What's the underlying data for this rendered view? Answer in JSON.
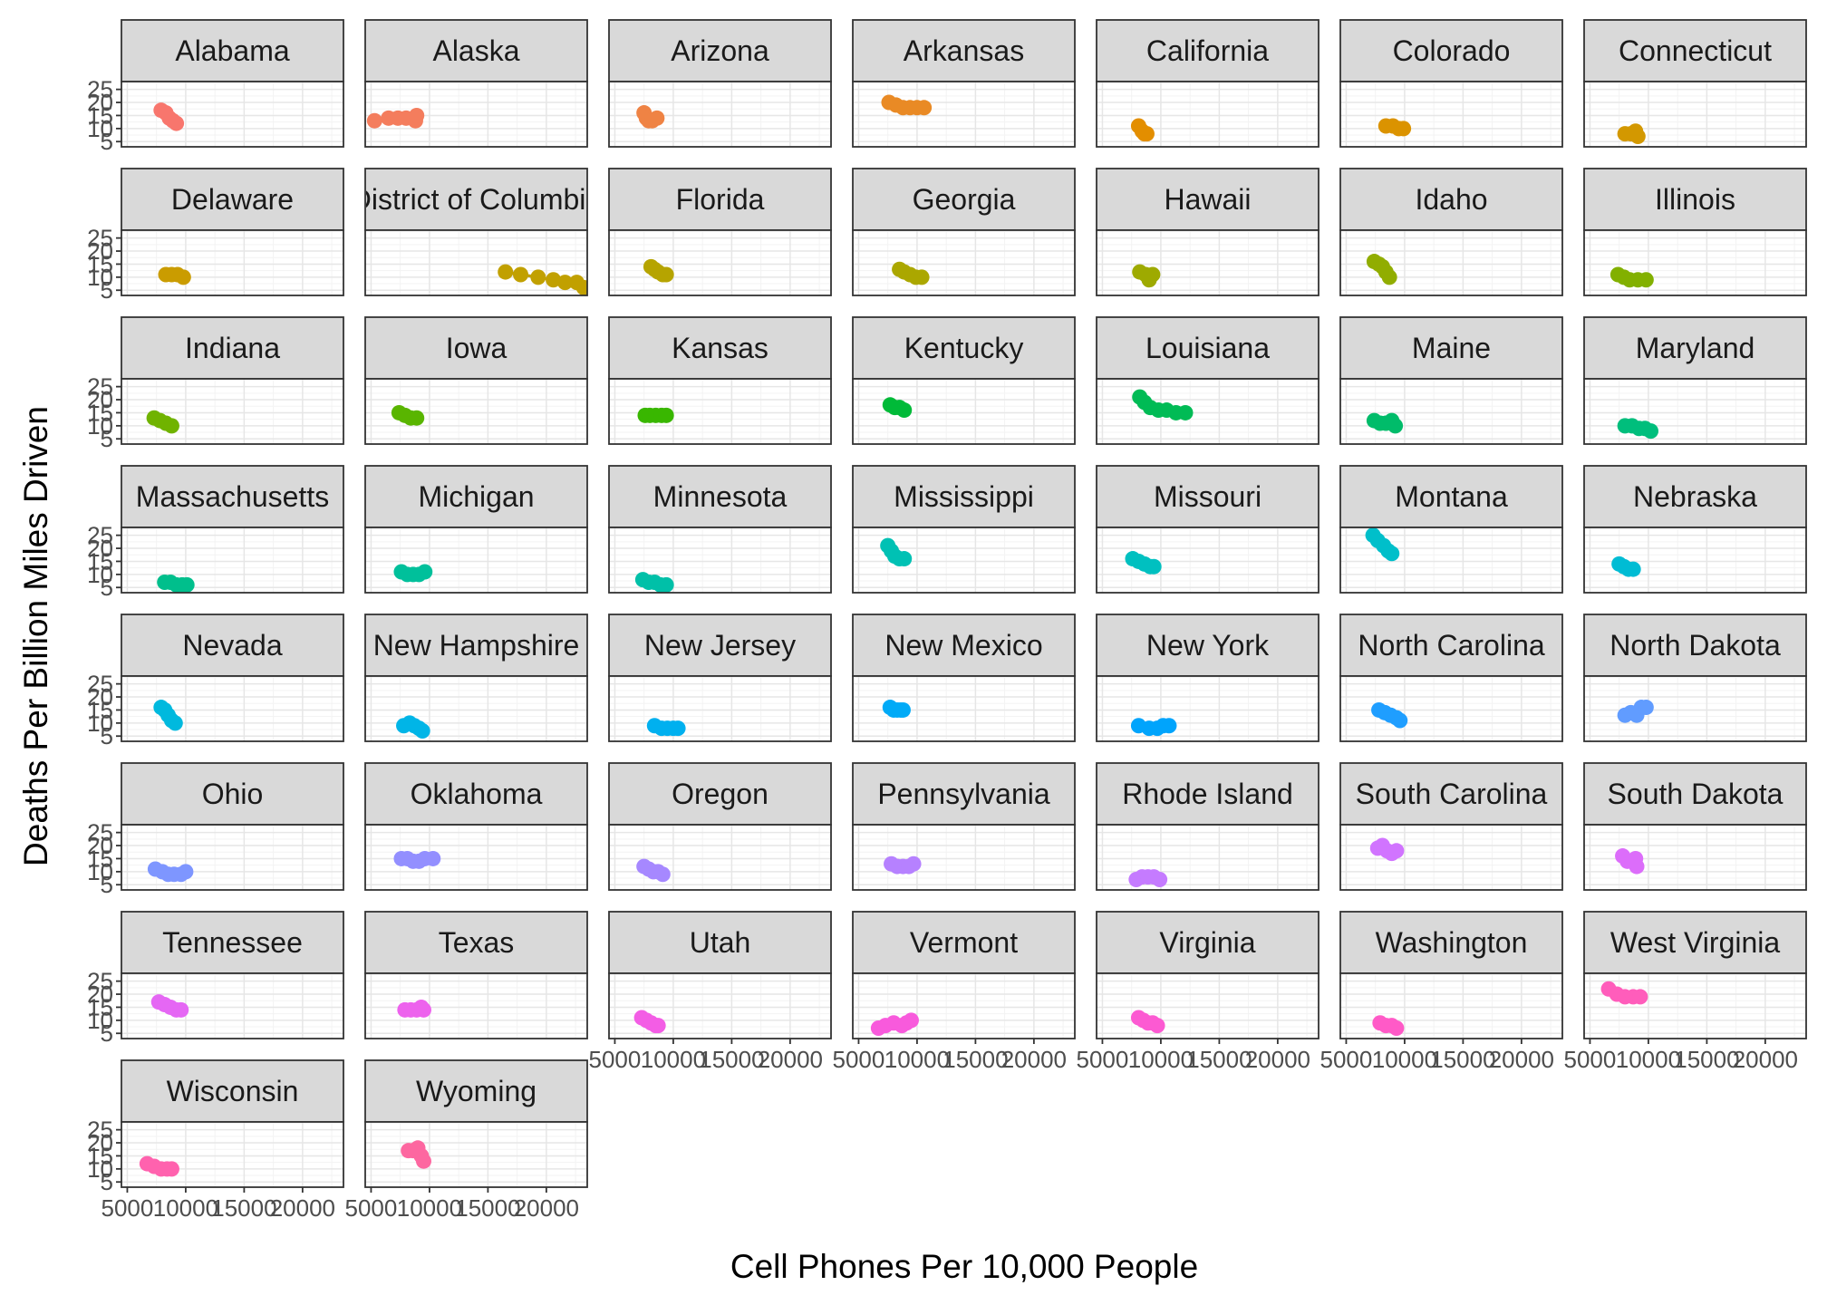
{
  "chart_data": {
    "type": "scatter",
    "xlabel": "Cell Phones Per 10,000 People",
    "ylabel": "Deaths Per Billion Miles Driven",
    "xlim": [
      4500,
      23500
    ],
    "ylim": [
      3,
      28
    ],
    "x_ticks": [
      5000,
      10000,
      15000,
      20000
    ],
    "x_tick_labels": [
      "5000",
      "10000",
      "15000",
      "20000"
    ],
    "y_ticks": [
      5,
      10,
      15,
      20,
      25
    ],
    "y_tick_labels": [
      "5",
      "10",
      "15",
      "20",
      "25"
    ],
    "grid": true,
    "legend": "none",
    "trend": "loess smoother with grey confidence band per panel",
    "facet_columns": 7,
    "panels": [
      {
        "title": "Alabama",
        "color": "#F8766D",
        "x": [
          7900,
          8300,
          8600,
          8900,
          9200
        ],
        "y": [
          17,
          16,
          14,
          13,
          12
        ]
      },
      {
        "title": "Alaska",
        "color": "#F47D5D",
        "x": [
          5300,
          6500,
          7300,
          8000,
          8800,
          8900
        ],
        "y": [
          13,
          14,
          14,
          14,
          13,
          15
        ]
      },
      {
        "title": "Arizona",
        "color": "#EF8344",
        "x": [
          7500,
          7700,
          7900,
          8200,
          8600
        ],
        "y": [
          16,
          14,
          13,
          13,
          14
        ]
      },
      {
        "title": "Arkansas",
        "color": "#E98A25",
        "x": [
          7600,
          8200,
          8800,
          9400,
          10000,
          10600
        ],
        "y": [
          20,
          19,
          18,
          18,
          18,
          18
        ]
      },
      {
        "title": "California",
        "color": "#E38E00",
        "x": [
          8100,
          8400,
          8600,
          8800
        ],
        "y": [
          11,
          9,
          8,
          8
        ]
      },
      {
        "title": "Colorado",
        "color": "#DB9300",
        "x": [
          8400,
          9000,
          9500,
          9900
        ],
        "y": [
          11,
          11,
          10,
          10
        ]
      },
      {
        "title": "Connecticut",
        "color": "#D39800",
        "x": [
          8000,
          8500,
          8900,
          9100
        ],
        "y": [
          8,
          8,
          9,
          7
        ]
      },
      {
        "title": "Delaware",
        "color": "#CA9C00",
        "x": [
          8300,
          8800,
          9300,
          9800
        ],
        "y": [
          11,
          11,
          11,
          10
        ]
      },
      {
        "title": "District of Columbia",
        "color": "#C1A000",
        "x": [
          16500,
          17800,
          19300,
          20600,
          21600,
          22600,
          23200
        ],
        "y": [
          12,
          11,
          10,
          9,
          8,
          8,
          6
        ]
      },
      {
        "title": "Florida",
        "color": "#B6A400",
        "x": [
          8100,
          8400,
          8700,
          9100,
          9400
        ],
        "y": [
          14,
          13,
          12,
          11,
          11
        ]
      },
      {
        "title": "Georgia",
        "color": "#ABA700",
        "x": [
          8500,
          8900,
          9400,
          9900,
          10400
        ],
        "y": [
          13,
          12,
          11,
          10,
          10
        ]
      },
      {
        "title": "Hawaii",
        "color": "#9EAA00",
        "x": [
          8200,
          8700,
          9000,
          9300
        ],
        "y": [
          12,
          11,
          9,
          11
        ]
      },
      {
        "title": "Idaho",
        "color": "#91AD00",
        "x": [
          7400,
          7800,
          8100,
          8400,
          8700
        ],
        "y": [
          16,
          15,
          14,
          12,
          10
        ]
      },
      {
        "title": "Illinois",
        "color": "#82B000",
        "x": [
          7400,
          7900,
          8400,
          9100,
          9800
        ],
        "y": [
          11,
          10,
          9,
          9,
          9
        ]
      },
      {
        "title": "Indiana",
        "color": "#70B300",
        "x": [
          7300,
          7800,
          8300,
          8800
        ],
        "y": [
          13,
          12,
          11,
          10
        ]
      },
      {
        "title": "Iowa",
        "color": "#59B500",
        "x": [
          7400,
          7900,
          8400,
          8900
        ],
        "y": [
          15,
          14,
          13,
          13
        ]
      },
      {
        "title": "Kansas",
        "color": "#39B700",
        "x": [
          7600,
          8000,
          8500,
          9000,
          9400
        ],
        "y": [
          14,
          14,
          14,
          14,
          14
        ]
      },
      {
        "title": "Kentucky",
        "color": "#00BA38",
        "x": [
          7700,
          8100,
          8500,
          8900
        ],
        "y": [
          18,
          17,
          17,
          16
        ]
      },
      {
        "title": "Louisiana",
        "color": "#00BB55",
        "x": [
          8200,
          8600,
          9100,
          9800,
          10500,
          11300,
          12100
        ],
        "y": [
          21,
          19,
          17,
          16,
          16,
          15,
          15
        ]
      },
      {
        "title": "Maine",
        "color": "#00BC6A",
        "x": [
          7400,
          7900,
          8400,
          8900,
          9200
        ],
        "y": [
          12,
          11,
          11,
          12,
          10
        ]
      },
      {
        "title": "Maryland",
        "color": "#00BE7C",
        "x": [
          8000,
          8600,
          9200,
          9700,
          10200
        ],
        "y": [
          10,
          10,
          9,
          9,
          8
        ]
      },
      {
        "title": "Massachusetts",
        "color": "#00BF8C",
        "x": [
          8200,
          8700,
          9200,
          9700,
          10100
        ],
        "y": [
          7,
          7,
          6,
          6,
          6
        ]
      },
      {
        "title": "Michigan",
        "color": "#00C09B",
        "x": [
          7600,
          8100,
          8600,
          9100,
          9600
        ],
        "y": [
          11,
          10,
          10,
          10,
          11
        ]
      },
      {
        "title": "Minnesota",
        "color": "#00C0A8",
        "x": [
          7400,
          7900,
          8400,
          8900,
          9400
        ],
        "y": [
          8,
          7,
          7,
          6,
          6
        ]
      },
      {
        "title": "Mississippi",
        "color": "#00C1B4",
        "x": [
          7500,
          7800,
          8100,
          8500,
          8900
        ],
        "y": [
          21,
          19,
          17,
          16,
          16
        ]
      },
      {
        "title": "Missouri",
        "color": "#00C0C0",
        "x": [
          7600,
          8100,
          8600,
          9100,
          9400
        ],
        "y": [
          16,
          15,
          14,
          13,
          13
        ]
      },
      {
        "title": "Montana",
        "color": "#00BFCA",
        "x": [
          7300,
          7700,
          8200,
          8600,
          8900
        ],
        "y": [
          25,
          23,
          21,
          19,
          18
        ]
      },
      {
        "title": "Nebraska",
        "color": "#00BCD4",
        "x": [
          7500,
          7900,
          8300,
          8700
        ],
        "y": [
          14,
          13,
          12,
          12
        ]
      },
      {
        "title": "Nevada",
        "color": "#00B9DE",
        "x": [
          7900,
          8200,
          8500,
          8800,
          9100
        ],
        "y": [
          16,
          15,
          13,
          11,
          10
        ]
      },
      {
        "title": "New Hampshire",
        "color": "#00B5E7",
        "x": [
          7800,
          8300,
          8700,
          9100,
          9400
        ],
        "y": [
          9,
          10,
          9,
          8,
          7
        ]
      },
      {
        "title": "New Jersey",
        "color": "#00B0EF",
        "x": [
          8400,
          9000,
          9500,
          10000,
          10400
        ],
        "y": [
          9,
          8,
          8,
          8,
          8
        ]
      },
      {
        "title": "New Mexico",
        "color": "#00AAF7",
        "x": [
          7700,
          8000,
          8300,
          8600,
          8800
        ],
        "y": [
          16,
          15,
          15,
          15,
          15
        ]
      },
      {
        "title": "New York",
        "color": "#00A4FC",
        "x": [
          8100,
          9000,
          9700,
          10200,
          10700
        ],
        "y": [
          9,
          8,
          8,
          9,
          9
        ]
      },
      {
        "title": "North Carolina",
        "color": "#1F9EFF",
        "x": [
          7800,
          8300,
          8800,
          9300,
          9600
        ],
        "y": [
          15,
          14,
          13,
          12,
          11
        ]
      },
      {
        "title": "North Dakota",
        "color": "#619CFF",
        "x": [
          8000,
          8500,
          9000,
          9400,
          9800
        ],
        "y": [
          13,
          14,
          13,
          16,
          16
        ]
      },
      {
        "title": "Ohio",
        "color": "#7E96FF",
        "x": [
          7400,
          8000,
          8500,
          9000,
          9600,
          10000
        ],
        "y": [
          11,
          10,
          9,
          9,
          9,
          10
        ]
      },
      {
        "title": "Oklahoma",
        "color": "#938FFF",
        "x": [
          7600,
          8100,
          8600,
          9100,
          9600,
          10300
        ],
        "y": [
          15,
          15,
          14,
          14,
          15,
          15
        ]
      },
      {
        "title": "Oregon",
        "color": "#A688FF",
        "x": [
          7500,
          7900,
          8300,
          8700,
          9100
        ],
        "y": [
          12,
          11,
          10,
          10,
          9
        ]
      },
      {
        "title": "Pennsylvania",
        "color": "#B681FF",
        "x": [
          7800,
          8300,
          8800,
          9300,
          9700
        ],
        "y": [
          13,
          12,
          12,
          12,
          13
        ]
      },
      {
        "title": "Rhode Island",
        "color": "#C57BFF",
        "x": [
          7900,
          8400,
          8900,
          9400,
          9900
        ],
        "y": [
          7,
          8,
          8,
          8,
          7
        ]
      },
      {
        "title": "South Carolina",
        "color": "#D174FF",
        "x": [
          7700,
          8100,
          8500,
          8900,
          9300
        ],
        "y": [
          19,
          20,
          18,
          17,
          18
        ]
      },
      {
        "title": "South Dakota",
        "color": "#DC6DFA",
        "x": [
          7800,
          8200,
          8600,
          8900,
          9000
        ],
        "y": [
          16,
          14,
          14,
          15,
          12
        ]
      },
      {
        "title": "Tennessee",
        "color": "#E567F4",
        "x": [
          7700,
          8200,
          8700,
          9200,
          9600
        ],
        "y": [
          17,
          16,
          15,
          14,
          14
        ]
      },
      {
        "title": "Texas",
        "color": "#ED62ED",
        "x": [
          7900,
          8400,
          8900,
          9300,
          9500
        ],
        "y": [
          14,
          14,
          14,
          15,
          14
        ]
      },
      {
        "title": "Utah",
        "color": "#F35DE5",
        "x": [
          7300,
          7700,
          8100,
          8500,
          8700
        ],
        "y": [
          11,
          10,
          9,
          8,
          8
        ]
      },
      {
        "title": "Vermont",
        "color": "#F85ADC",
        "x": [
          6700,
          7300,
          8000,
          8700,
          9100,
          9500
        ],
        "y": [
          7,
          8,
          9,
          8,
          9,
          10
        ]
      },
      {
        "title": "Virginia",
        "color": "#FC5AD2",
        "x": [
          8100,
          8500,
          8900,
          9300,
          9700
        ],
        "y": [
          11,
          10,
          9,
          9,
          8
        ]
      },
      {
        "title": "Washington",
        "color": "#FF5AC7",
        "x": [
          7900,
          8400,
          8900,
          9300
        ],
        "y": [
          9,
          8,
          8,
          7
        ]
      },
      {
        "title": "West Virginia",
        "color": "#FF5DBB",
        "x": [
          6600,
          7300,
          8000,
          8700,
          9300
        ],
        "y": [
          22,
          20,
          19,
          19,
          19
        ]
      },
      {
        "title": "Wisconsin",
        "color": "#FF62AE",
        "x": [
          6700,
          7300,
          7900,
          8400,
          8800
        ],
        "y": [
          12,
          11,
          10,
          10,
          10
        ]
      },
      {
        "title": "Wyoming",
        "color": "#FD67A0",
        "x": [
          8200,
          8600,
          9000,
          9300,
          9500
        ],
        "y": [
          17,
          17,
          18,
          15,
          13
        ]
      }
    ]
  }
}
